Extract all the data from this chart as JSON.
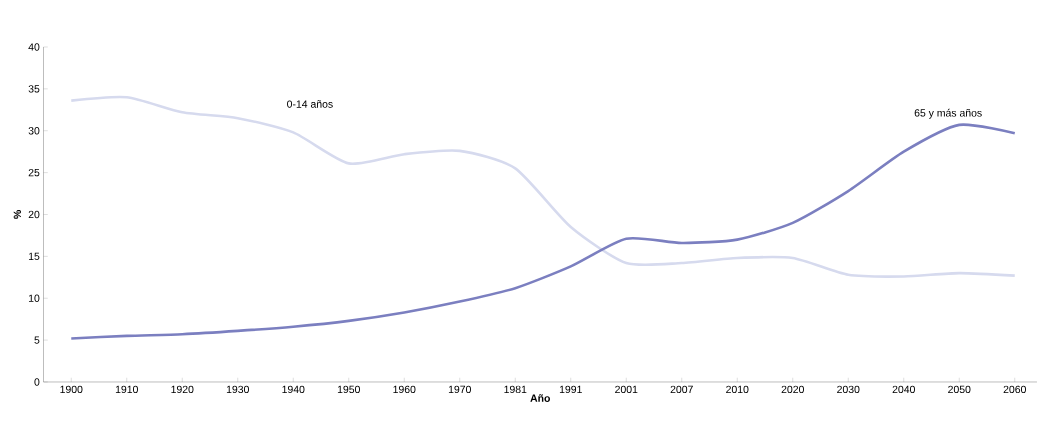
{
  "chart_data": {
    "type": "line",
    "xlabel": "Año",
    "ylabel": "%",
    "categories": [
      "1900",
      "1910",
      "1920",
      "1930",
      "1940",
      "1950",
      "1960",
      "1970",
      "1981",
      "1991",
      "2001",
      "2007",
      "2010",
      "2020",
      "2030",
      "2040",
      "2050",
      "2060"
    ],
    "series": [
      {
        "name": "0-14 años",
        "color": "#d6daee",
        "values": [
          33.6,
          34.0,
          32.2,
          31.5,
          29.8,
          26.1,
          27.2,
          27.6,
          25.5,
          18.5,
          14.2,
          14.2,
          14.8,
          14.8,
          12.8,
          12.6,
          13.0,
          12.7
        ]
      },
      {
        "name": "65 y más años",
        "color": "#7b7fc0",
        "values": [
          5.2,
          5.5,
          5.7,
          6.1,
          6.6,
          7.3,
          8.3,
          9.6,
          11.2,
          13.8,
          17.1,
          16.6,
          17.0,
          19.0,
          22.8,
          27.5,
          30.7,
          29.7
        ]
      }
    ],
    "ylim": [
      0,
      40
    ],
    "yticks": [
      0,
      5,
      10,
      15,
      20,
      25,
      30,
      35,
      40
    ],
    "grid": false,
    "legend": false,
    "marker": "none",
    "line_style": "solid"
  }
}
